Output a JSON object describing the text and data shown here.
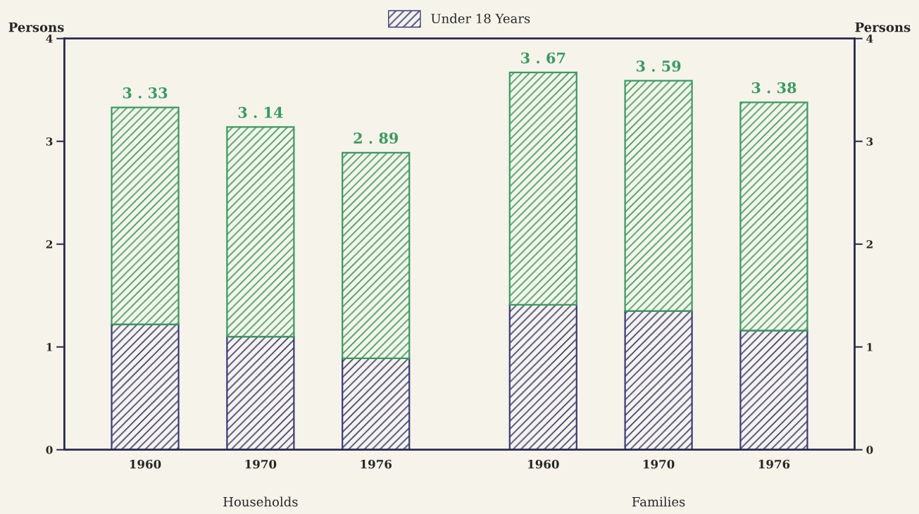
{
  "chart_data": {
    "type": "bar",
    "stacked": true,
    "categories": [
      "1960",
      "1970",
      "1976",
      "1960",
      "1970",
      "1976"
    ],
    "series": [
      {
        "name": "Under 18 Years",
        "color": "#3b3b7a",
        "values": [
          1.22,
          1.1,
          0.89,
          1.41,
          1.35,
          1.16
        ]
      },
      {
        "color": "#3a9a60",
        "values": [
          2.11,
          2.04,
          2.0,
          2.26,
          2.24,
          2.22
        ]
      }
    ],
    "totals": [
      "3 . 33",
      "3 . 14",
      "2 . 89",
      "3 . 67",
      "3 . 59",
      "3 . 38"
    ],
    "ylabel": "Persons",
    "y2label": "Persons",
    "ylim": [
      0,
      4
    ],
    "yticks": [
      0,
      1,
      2,
      3,
      4
    ],
    "y2lim": [
      0,
      4
    ],
    "y2ticks": [
      0,
      1,
      2,
      3,
      4
    ],
    "annotations": [
      "Households",
      "Families"
    ],
    "legend": "top",
    "grid": false
  }
}
